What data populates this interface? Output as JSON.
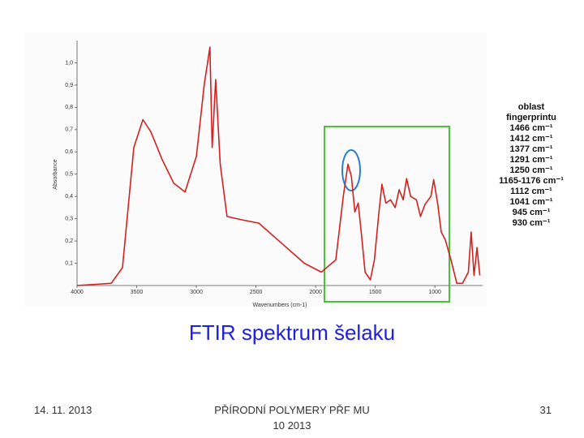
{
  "chart_data": {
    "type": "line",
    "x_label": "Wavenumbers (cm-1)",
    "y_label": "Absorbance",
    "xlim": [
      4000,
      600
    ],
    "ylim": [
      0,
      1.1
    ],
    "xticks": [
      4000,
      3500,
      3000,
      2500,
      2000,
      1500,
      1000
    ],
    "yticks": [
      {
        "value": 0.1,
        "label": "0,1"
      },
      {
        "value": 0.2,
        "label": "0,2"
      },
      {
        "value": 0.3,
        "label": "0,3"
      },
      {
        "value": 0.4,
        "label": "0,4"
      },
      {
        "value": 0.5,
        "label": "0,5"
      },
      {
        "value": 0.6,
        "label": "0,6"
      },
      {
        "value": 0.7,
        "label": "0,7"
      },
      {
        "value": 0.8,
        "label": "0,8"
      },
      {
        "value": 0.9,
        "label": "0,9"
      },
      {
        "value": 1.0,
        "label": "1,0"
      }
    ],
    "color": "#d42020",
    "x": [
      4000,
      3714,
      3619,
      3524,
      3448,
      3381,
      3286,
      3190,
      3095,
      3000,
      2933,
      2886,
      2867,
      2838,
      2800,
      2743,
      2619,
      2476,
      2286,
      2095,
      1952,
      1831,
      1768,
      1729,
      1700,
      1671,
      1643,
      1614,
      1585,
      1541,
      1507,
      1469,
      1444,
      1411,
      1372,
      1333,
      1300,
      1266,
      1237,
      1203,
      1155,
      1121,
      1082,
      1034,
      1010,
      976,
      947,
      913,
      865,
      816,
      768,
      720,
      696,
      672,
      647,
      623
    ],
    "values": [
      0,
      0.01,
      0.08,
      0.62,
      0.745,
      0.69,
      0.565,
      0.46,
      0.42,
      0.58,
      0.905,
      1.07,
      0.62,
      0.925,
      0.545,
      0.31,
      0.295,
      0.28,
      0.19,
      0.1,
      0.06,
      0.115,
      0.4,
      0.545,
      0.49,
      0.33,
      0.37,
      0.22,
      0.06,
      0.025,
      0.115,
      0.33,
      0.455,
      0.37,
      0.385,
      0.35,
      0.43,
      0.385,
      0.48,
      0.4,
      0.385,
      0.31,
      0.365,
      0.4,
      0.475,
      0.365,
      0.24,
      0.205,
      0.115,
      0.01,
      0.01,
      0.06,
      0.24,
      0.045,
      0.17,
      0.045
    ]
  },
  "annotation": {
    "heading": [
      "oblast",
      "fingerprintu"
    ],
    "items": [
      "1466 cm⁻¹",
      "1412 cm⁻¹",
      "1377 cm⁻¹",
      "1291 cm⁻¹",
      "1250 cm⁻¹",
      "1165-1176 cm⁻¹",
      "1112 cm⁻¹",
      "1041 cm⁻¹",
      "945 cm⁻¹",
      "930 cm⁻¹"
    ]
  },
  "slide": {
    "title": "FTIR spektrum šelaku",
    "date": "14. 11. 2013",
    "footer": [
      "PŘÍRODNÍ POLYMERY PŘF MU",
      "10 2013"
    ],
    "page": "31"
  }
}
